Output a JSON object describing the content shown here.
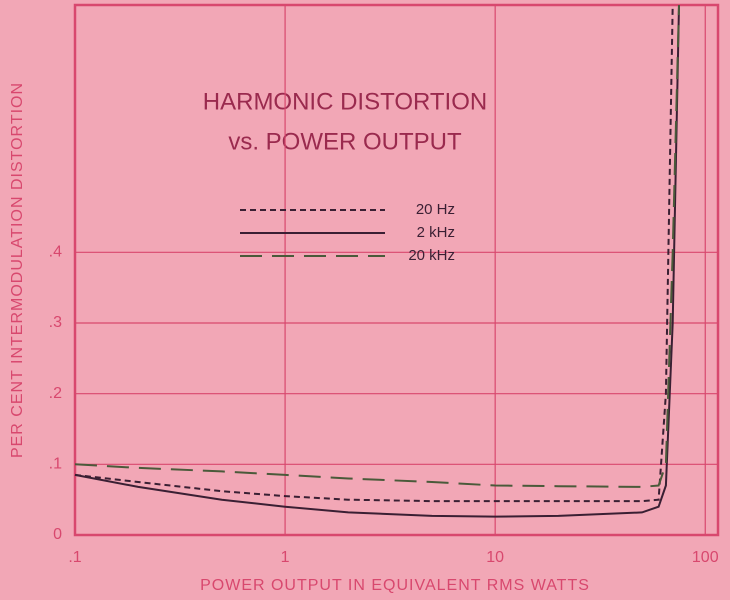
{
  "chart_data": {
    "type": "line",
    "title": [
      "HARMONIC DISTORTION",
      "vs. POWER OUTPUT"
    ],
    "xlabel": "POWER OUTPUT IN EQUIVALENT RMS WATTS",
    "ylabel": "PER CENT INTERMODULATION DISTORTION",
    "xscale": "log",
    "x": [
      0.1,
      0.2,
      0.5,
      1,
      2,
      5,
      10,
      20,
      50,
      60,
      65,
      70,
      75
    ],
    "series": [
      {
        "name": "20 Hz",
        "color": "#3a1f33",
        "dash": "6,4",
        "values": [
          0.085,
          0.075,
          0.062,
          0.055,
          0.05,
          0.048,
          0.048,
          0.048,
          0.048,
          0.05,
          0.2,
          0.75,
          null
        ]
      },
      {
        "name": "2 kHz",
        "color": "#3a1f33",
        "dash": "none",
        "values": [
          0.085,
          0.068,
          0.05,
          0.04,
          0.032,
          0.027,
          0.026,
          0.027,
          0.032,
          0.04,
          0.07,
          0.3,
          0.75
        ]
      },
      {
        "name": "20 kHz",
        "color": "#4a5a3a",
        "dash": "22,10",
        "values": [
          0.1,
          0.095,
          0.09,
          0.085,
          0.08,
          0.075,
          0.07,
          0.069,
          0.068,
          0.07,
          0.1,
          0.4,
          0.75
        ]
      }
    ],
    "xlim": [
      0.1,
      115
    ],
    "ylim": [
      0,
      0.75
    ],
    "xticks": [
      {
        "value": 0.1,
        "label": ".1"
      },
      1,
      10,
      100
    ],
    "yticks": [
      0,
      {
        "value": 0.1,
        "label": ".1"
      },
      {
        "value": 0.2,
        "label": ".2"
      },
      {
        "value": 0.3,
        "label": ".3"
      },
      {
        "value": 0.4,
        "label": ".4"
      }
    ],
    "grid": true
  }
}
